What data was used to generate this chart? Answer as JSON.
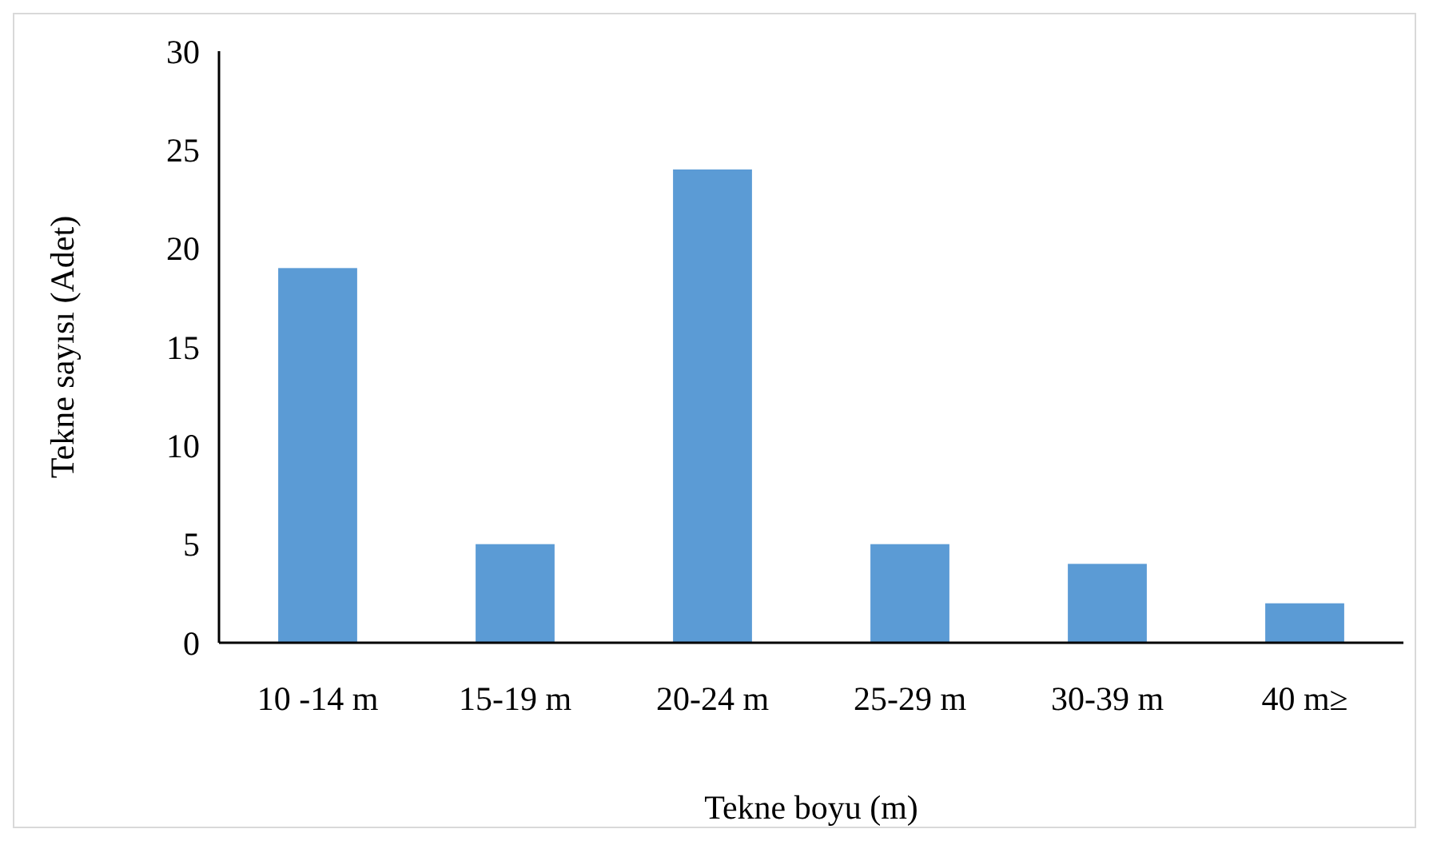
{
  "chart_data": {
    "type": "bar",
    "xlabel": "Tekne boyu (m)",
    "ylabel": "Tekne sayısı (Adet)",
    "categories": [
      "10 -14 m",
      "15-19 m",
      "20-24 m",
      "25-29 m",
      "30-39 m",
      "40 m≥"
    ],
    "values": [
      19,
      5,
      24,
      5,
      4,
      2
    ],
    "color": "#5b9bd5",
    "ylim": [
      0,
      30
    ],
    "yticks": [
      0,
      5,
      10,
      15,
      20,
      25,
      30
    ],
    "grid": false
  }
}
